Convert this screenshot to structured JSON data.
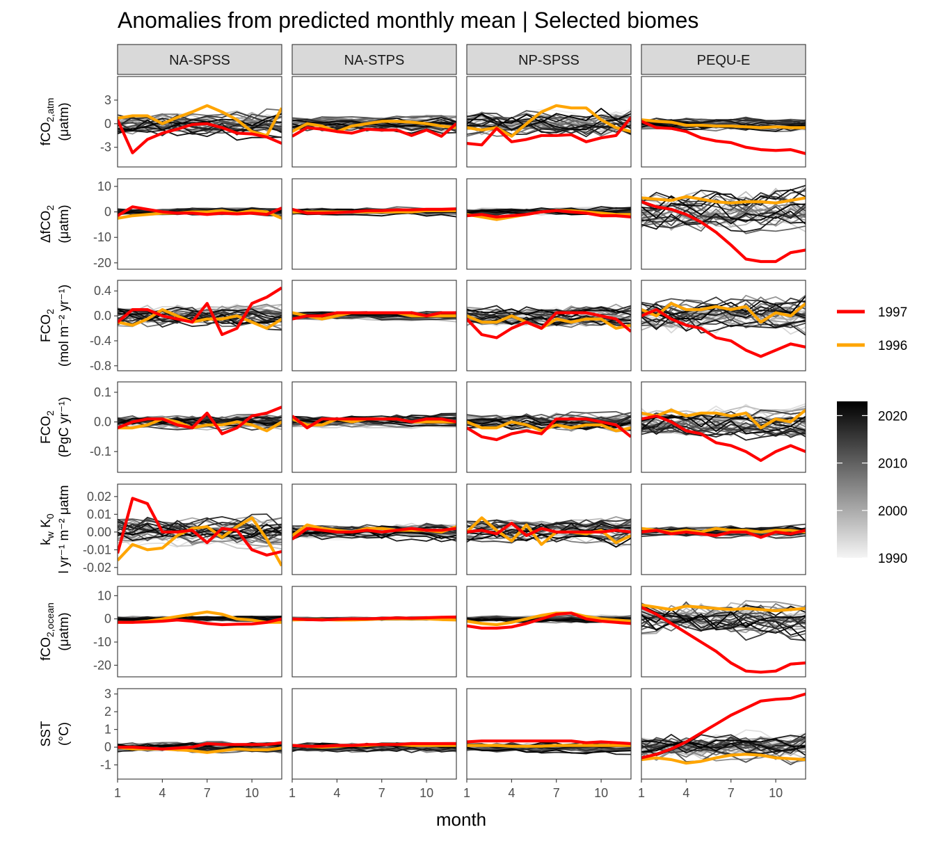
{
  "chart_data": {
    "type": "line",
    "title": "Anomalies from predicted monthly mean | Selected biomes",
    "xlabel": "month",
    "x": [
      1,
      2,
      3,
      4,
      5,
      6,
      7,
      8,
      9,
      10,
      11,
      12
    ],
    "x_ticks": [
      "1",
      "4",
      "7",
      "10"
    ],
    "facet_columns": [
      "NA-SPSS",
      "NA-STPS",
      "NP-SPSS",
      "PEQU-E"
    ],
    "rows": [
      {
        "id": "fco2atm",
        "label_line1": "fCO",
        "label_sub": "2,atm",
        "label_line2": "(μatm)",
        "ylim": [
          -5.5,
          6
        ],
        "yticks": [
          "3",
          "0",
          "-3"
        ],
        "ytick_values": [
          3,
          0,
          -3
        ]
      },
      {
        "id": "dfco2",
        "label_pre": "ΔfCO",
        "label_sub": "2",
        "label_line2": "(μatm)",
        "ylim": [
          -22.5,
          13
        ],
        "yticks": [
          "10",
          "0",
          "-10",
          "-20"
        ],
        "ytick_values": [
          10,
          0,
          -10,
          -20
        ]
      },
      {
        "id": "fco2flux_m2",
        "label_line1": "FCO",
        "label_sub": "2",
        "label_line2": "(mol m⁻² yr⁻¹)",
        "ylim": [
          -0.88,
          0.57
        ],
        "yticks": [
          "0.4",
          "0.0",
          "-0.4",
          "-0.8"
        ],
        "ytick_values": [
          0.4,
          0,
          -0.4,
          -0.8
        ]
      },
      {
        "id": "fco2flux_int",
        "label_line1": "FCO",
        "label_sub": "2",
        "label_line2": "(PgC yr⁻¹)",
        "ylim": [
          -0.17,
          0.135
        ],
        "yticks": [
          "0.1",
          "0.0",
          "-0.1"
        ],
        "ytick_values": [
          0.1,
          0,
          -0.1
        ]
      },
      {
        "id": "kw",
        "label_line1": "k",
        "label_sub": "w",
        "label_mid": " K",
        "label_sub2": "0",
        "label_line2": "l yr⁻¹ m⁻² μatm",
        "ylim": [
          -0.024,
          0.027
        ],
        "yticks": [
          "0.02",
          "0.01",
          "0.00",
          "-0.01",
          "-0.02"
        ],
        "ytick_values": [
          0.02,
          0.01,
          0,
          -0.01,
          -0.02
        ]
      },
      {
        "id": "fco2ocean",
        "label_line1": "fCO",
        "label_sub": "2,ocean",
        "label_line2": "(μatm)",
        "ylim": [
          -25,
          14
        ],
        "yticks": [
          "10",
          "0",
          "-10",
          "-20"
        ],
        "ytick_values": [
          10,
          0,
          -10,
          -20
        ]
      },
      {
        "id": "sst",
        "label_line1": "SST",
        "label_line2": "(°C)",
        "ylim": [
          -1.8,
          3.3
        ],
        "yticks": [
          "3",
          "2",
          "1",
          "0",
          "-1"
        ],
        "ytick_values": [
          3,
          2,
          1,
          0,
          -1
        ]
      }
    ],
    "series": [
      {
        "name": "1997",
        "color": "#FF0000",
        "values": {
          "fco2atm": [
            [
              0.5,
              -3.7,
              -2,
              -1.2,
              -0.7,
              -0.1,
              0,
              -0.5,
              -1.2,
              -1.3,
              -1.7,
              -2.5
            ],
            [
              -1.6,
              -0.5,
              -0.7,
              -1,
              -1.2,
              -0.7,
              -0.8,
              -0.8,
              -1.5,
              -0.8,
              -1.6,
              0
            ],
            [
              -2.5,
              -2.7,
              -0.6,
              -2.3,
              -2,
              -1.5,
              -1.5,
              -1.4,
              -2.3,
              -1.8,
              -1.5,
              0.8
            ],
            [
              0.3,
              -0.5,
              -0.6,
              -1,
              -1.8,
              -2.2,
              -2.4,
              -3,
              -3.3,
              -3.4,
              -3.3,
              -3.8
            ]
          ],
          "dfco2": [
            [
              -1.5,
              2,
              1,
              0,
              -0.5,
              -0.5,
              -1,
              -0.5,
              -0.8,
              -0.5,
              -1,
              1.5
            ],
            [
              1,
              -0.5,
              -0.5,
              -0.3,
              0,
              0.5,
              0.5,
              0.8,
              0.8,
              1,
              1,
              1.2
            ],
            [
              -1.5,
              -1,
              -2,
              -1.5,
              -1,
              0,
              0.5,
              0,
              -0.5,
              -1.5,
              -1.5,
              -2
            ],
            [
              4,
              2,
              1,
              -1,
              -4,
              -8,
              -13,
              -18.5,
              -19.5,
              -19.5,
              -16,
              -15
            ]
          ],
          "fco2flux_m2": [
            [
              -0.1,
              0.1,
              0.1,
              0,
              -0.05,
              -0.1,
              0.2,
              -0.3,
              -0.2,
              0.2,
              0.3,
              0.45
            ],
            [
              -0.05,
              0,
              0,
              0.05,
              0.05,
              0.05,
              0.05,
              0.05,
              0.05,
              0,
              0.05,
              0.05
            ],
            [
              -0.05,
              -0.3,
              -0.35,
              -0.2,
              -0.1,
              -0.2,
              0.05,
              0.05,
              0.05,
              0,
              -0.05,
              -0.25
            ],
            [
              0,
              0.1,
              -0.05,
              -0.15,
              -0.2,
              -0.35,
              -0.4,
              -0.55,
              -0.65,
              -0.55,
              -0.45,
              -0.5
            ]
          ],
          "fco2flux_int": [
            [
              -0.02,
              0,
              0.01,
              0.01,
              -0.01,
              -0.02,
              0.03,
              -0.04,
              -0.02,
              0.02,
              0.03,
              0.05
            ],
            [
              0.02,
              -0.02,
              0.01,
              0.01,
              0.01,
              0.01,
              0.01,
              0.01,
              0,
              0.01,
              0.01,
              0
            ],
            [
              -0.02,
              -0.05,
              -0.06,
              -0.04,
              -0.03,
              -0.04,
              0.01,
              0.01,
              0.01,
              0,
              -0.01,
              -0.05
            ],
            [
              0.01,
              0.02,
              0,
              -0.03,
              -0.04,
              -0.07,
              -0.08,
              -0.1,
              -0.13,
              -0.1,
              -0.08,
              -0.1
            ]
          ],
          "kw": [
            [
              -0.012,
              0.019,
              0.016,
              0,
              0,
              0.001,
              -0.006,
              0.002,
              0.001,
              -0.01,
              -0.013,
              -0.011
            ],
            [
              -0.004,
              0.002,
              0.001,
              0,
              0,
              0.001,
              0,
              0.001,
              0.002,
              0.001,
              0.001,
              0.002
            ],
            [
              0,
              0.001,
              -0.001,
              0.005,
              -0.002,
              0.002,
              0,
              0,
              0,
              0,
              0.001,
              0
            ],
            [
              0,
              0.001,
              -0.001,
              0,
              -0.001,
              -0.002,
              0,
              0,
              -0.003,
              0,
              -0.001,
              0.001
            ]
          ],
          "fco2ocean": [
            [
              -1.5,
              -1.5,
              -1.3,
              -1,
              -0.5,
              -1,
              -2,
              -2.5,
              -2.3,
              -2.2,
              -1.5,
              0
            ],
            [
              0,
              -0.3,
              -0.5,
              -0.2,
              0,
              0,
              0.2,
              0.4,
              0.3,
              0.5,
              0.7,
              0.8
            ],
            [
              -3,
              -4,
              -4,
              -3.5,
              -2,
              0,
              2,
              2.5,
              0,
              -1,
              -1.5,
              -2
            ],
            [
              5,
              2,
              -2,
              -6,
              -10,
              -14,
              -19,
              -22.5,
              -23,
              -22.5,
              -19.5,
              -19
            ]
          ],
          "sst": [
            [
              0,
              0,
              -0.05,
              -0.1,
              -0.05,
              0,
              0.2,
              0.15,
              0.15,
              0.15,
              0.15,
              0.25
            ],
            [
              0.1,
              0.05,
              0.05,
              0.1,
              0.1,
              0.15,
              0.15,
              0.15,
              0.2,
              0.2,
              0.2,
              0.2
            ],
            [
              0.3,
              0.35,
              0.35,
              0.35,
              0.35,
              0.35,
              0.35,
              0.35,
              0.25,
              0.3,
              0.25,
              0.2
            ],
            [
              -0.6,
              -0.4,
              -0.1,
              0.3,
              0.8,
              1.3,
              1.8,
              2.2,
              2.6,
              2.7,
              2.75,
              3
            ]
          ]
        }
      },
      {
        "name": "1996",
        "color": "#FFA500",
        "values": {
          "fco2atm": [
            [
              0.7,
              1,
              1,
              0,
              0.8,
              1.5,
              2.3,
              1.5,
              0.5,
              -1,
              -1.5,
              2
            ],
            [
              -1,
              0,
              -0.3,
              -1,
              -0.3,
              0,
              0.3,
              0.3,
              0.2,
              0,
              -0.3,
              -0.5
            ],
            [
              -0.5,
              -0.8,
              -0.5,
              -1.6,
              0,
              1.5,
              2.3,
              2,
              2,
              0.5,
              -0.5,
              -1
            ],
            [
              0.5,
              0.3,
              0.2,
              -0.2,
              -0.2,
              -0.3,
              -0.3,
              -0.4,
              -0.5,
              -0.4,
              -0.5,
              -0.5
            ]
          ],
          "dfco2": [
            [
              -2.5,
              -1.5,
              -1,
              -0.5,
              -0.5,
              0,
              0,
              0.5,
              -0.5,
              0.5,
              0,
              -2.5
            ],
            [
              0,
              0,
              0,
              0,
              0,
              0,
              0,
              0,
              0,
              0.5,
              0.5,
              0.5
            ],
            [
              -1,
              -2,
              -3,
              -2,
              -1,
              0,
              0.5,
              0.5,
              0,
              -0.5,
              -1,
              -1
            ],
            [
              5.5,
              5,
              4.5,
              6,
              5,
              4,
              3.5,
              4,
              4,
              3.5,
              4.5,
              5.5
            ]
          ],
          "fco2flux_m2": [
            [
              -0.1,
              -0.15,
              -0.05,
              0.1,
              0,
              -0.1,
              -0.05,
              -0.05,
              0,
              -0.1,
              -0.2,
              -0.05
            ],
            [
              0.05,
              0,
              -0.05,
              0,
              0.05,
              0.05,
              0.05,
              0.05,
              0,
              0,
              0,
              0
            ],
            [
              0,
              -0.1,
              -0.1,
              0,
              -0.1,
              -0.2,
              -0.05,
              -0.1,
              -0.05,
              -0.05,
              -0.2,
              -0.15
            ],
            [
              0.1,
              0,
              0.2,
              0.1,
              0.1,
              0.15,
              0.1,
              0.15,
              -0.1,
              0.05,
              0,
              0.2
            ]
          ],
          "fco2flux_int": [
            [
              -0.02,
              -0.02,
              -0.01,
              0.01,
              0,
              -0.02,
              -0.01,
              -0.01,
              0,
              -0.01,
              -0.03,
              0
            ],
            [
              0.01,
              -0.01,
              -0.01,
              0.01,
              0,
              0.01,
              0.01,
              0.01,
              0,
              0,
              0,
              0
            ],
            [
              0,
              -0.02,
              -0.02,
              0,
              -0.01,
              -0.03,
              -0.01,
              -0.02,
              -0.01,
              -0.01,
              -0.03,
              -0.02
            ],
            [
              0.03,
              0.02,
              0.04,
              0.02,
              0.03,
              0.03,
              0.02,
              0.03,
              -0.02,
              0.01,
              0,
              0.04
            ]
          ],
          "kw": [
            [
              -0.016,
              -0.007,
              -0.01,
              -0.009,
              -0.002,
              0.002,
              0.003,
              -0.003,
              0.003,
              0.008,
              -0.004,
              -0.019
            ],
            [
              -0.002,
              0.004,
              0.002,
              0.001,
              0,
              0.002,
              0.002,
              0.001,
              0.001,
              0.001,
              0,
              0.003
            ],
            [
              0,
              0.008,
              0.001,
              -0.005,
              0.004,
              -0.007,
              0,
              0,
              -0.001,
              0.001,
              -0.006,
              -0.002
            ],
            [
              0.002,
              0.001,
              0,
              0.001,
              0,
              0.002,
              0.001,
              0.001,
              0,
              0.001,
              0.001,
              0
            ]
          ],
          "fco2ocean": [
            [
              -1.5,
              -1.5,
              -1,
              0,
              1,
              2,
              3,
              2,
              0,
              -0.5,
              -1.5,
              -1.5
            ],
            [
              -0.5,
              -0.3,
              -0.3,
              -0.5,
              -0.5,
              -0.3,
              0,
              0,
              0,
              0,
              -0.3,
              -0.5
            ],
            [
              -1,
              -2,
              -2.5,
              -1.5,
              0,
              1.5,
              2.5,
              2.5,
              1,
              0,
              -0.5,
              -1
            ],
            [
              6,
              5,
              4,
              5.5,
              5,
              4.5,
              4,
              4.5,
              4,
              3.5,
              4,
              4.5
            ]
          ],
          "sst": [
            [
              0,
              -0.1,
              -0.1,
              -0.1,
              -0.15,
              -0.2,
              -0.3,
              -0.2,
              -0.1,
              -0.15,
              -0.15,
              -0.05
            ],
            [
              0.1,
              0.05,
              0,
              0.05,
              0.1,
              0.1,
              0.15,
              0.15,
              0.1,
              0.1,
              0.1,
              0.1
            ],
            [
              0.1,
              0.1,
              0.1,
              0.05,
              0.05,
              0.05,
              0.1,
              0.1,
              0.1,
              0.1,
              0.1,
              0.1
            ],
            [
              -0.7,
              -0.6,
              -0.7,
              -0.9,
              -0.8,
              -0.6,
              -0.45,
              -0.4,
              -0.45,
              -0.6,
              -0.65,
              -0.7
            ]
          ]
        }
      }
    ],
    "background_series_note": "",
    "colorbar": {
      "ticks": [
        "2020",
        "2010",
        "2000",
        "1990"
      ],
      "tick_values": [
        2020,
        2010,
        2000,
        1990
      ],
      "range": [
        1990,
        2023
      ],
      "color_low": "#f5f5f5",
      "color_high": "#000000"
    },
    "legend_position": "right"
  }
}
